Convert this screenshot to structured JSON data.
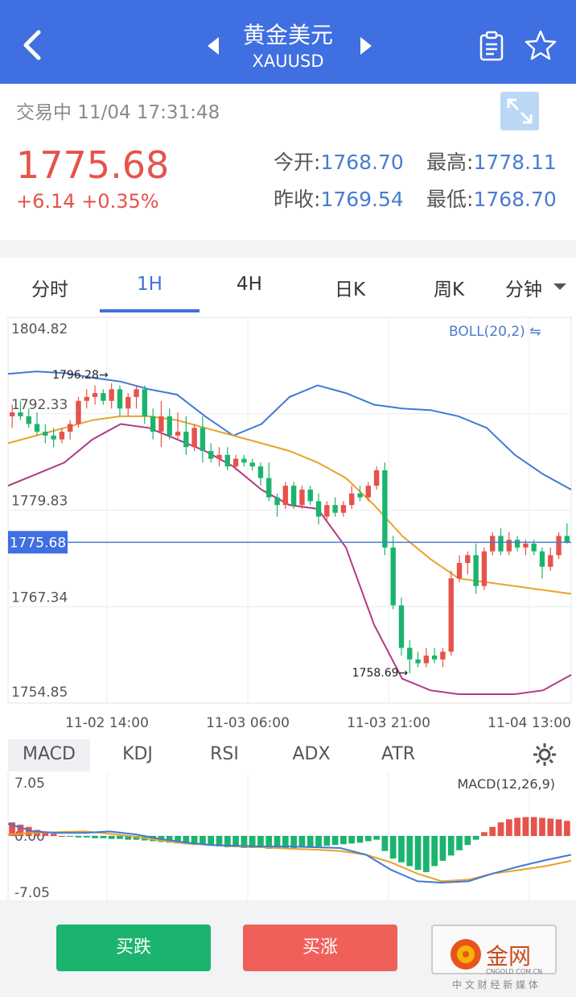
{
  "header": {
    "title": "黄金美元",
    "symbol": "XAUUSD"
  },
  "quote": {
    "status": "交易中 11/04 17:31:48",
    "price": "1775.68",
    "change": "+6.14",
    "change_pct": "+0.35%",
    "open_label": "今开:",
    "open_value": "1768.70",
    "high_label": "最高:",
    "high_value": "1778.11",
    "prev_close_label": "昨收:",
    "prev_close_value": "1769.54",
    "low_label": "最低:",
    "low_value": "1768.70"
  },
  "tabs": [
    {
      "label": "分时"
    },
    {
      "label": "1H"
    },
    {
      "label": "4H"
    },
    {
      "label": "日K"
    },
    {
      "label": "周K"
    },
    {
      "label": "分钟"
    }
  ],
  "active_tab": "1H",
  "indicator_tabs": [
    "MACD",
    "KDJ",
    "RSI",
    "ADX",
    "ATR"
  ],
  "colors": {
    "up": "#e5534b",
    "down": "#1bb46e",
    "accent": "#3f6fe0",
    "boll_upper": "#3f7ad6",
    "boll_mid": "#e8a32b",
    "boll_lower": "#b03a86"
  },
  "buttons": {
    "sell": "买跌",
    "buy": "买涨"
  },
  "watermark": {
    "brand": "金网",
    "domain": "CNGOLD.COM.CN",
    "slogan": "中 文 财 经 新 媒 体"
  },
  "chart_data": [
    {
      "type": "candlestick",
      "indicator": "BOLL(20,2)",
      "y_ticks": [
        "1804.82",
        "1792.33",
        "1779.83",
        "1767.34",
        "1754.85"
      ],
      "ylim": [
        1754.85,
        1804.82
      ],
      "x_ticks": [
        "11-02 14:00",
        "11-03 06:00",
        "11-03 21:00",
        "11-04 13:00"
      ],
      "current_price": "1775.68",
      "annotations": {
        "high": "1796.28",
        "low": "1758.69"
      },
      "ohlc": [
        [
          1792.0,
          1793.5,
          1790.5,
          1792.5
        ],
        [
          1792.5,
          1794.0,
          1791.5,
          1792.0
        ],
        [
          1792.0,
          1793.0,
          1790.5,
          1791.0
        ],
        [
          1791.0,
          1792.5,
          1789.5,
          1790.0
        ],
        [
          1790.0,
          1791.0,
          1788.5,
          1789.5
        ],
        [
          1789.5,
          1790.5,
          1788.0,
          1789.0
        ],
        [
          1789.0,
          1790.5,
          1788.5,
          1790.0
        ],
        [
          1790.0,
          1791.5,
          1789.0,
          1791.0
        ],
        [
          1791.0,
          1794.5,
          1790.5,
          1794.0
        ],
        [
          1794.0,
          1795.5,
          1793.0,
          1794.5
        ],
        [
          1794.5,
          1796.0,
          1793.5,
          1795.0
        ],
        [
          1795.0,
          1795.5,
          1793.5,
          1794.0
        ],
        [
          1794.0,
          1796.28,
          1793.0,
          1795.5
        ],
        [
          1795.5,
          1796.0,
          1792.0,
          1793.0
        ],
        [
          1793.0,
          1795.0,
          1792.0,
          1794.5
        ],
        [
          1794.5,
          1796.0,
          1793.0,
          1795.5
        ],
        [
          1795.5,
          1796.0,
          1791.0,
          1792.0
        ],
        [
          1792.0,
          1793.0,
          1789.0,
          1790.0
        ],
        [
          1790.0,
          1794.0,
          1788.0,
          1792.0
        ],
        [
          1792.0,
          1793.0,
          1789.0,
          1789.5
        ],
        [
          1789.5,
          1792.5,
          1789.0,
          1790.0
        ],
        [
          1790.0,
          1792.0,
          1787.0,
          1788.0
        ],
        [
          1788.0,
          1791.0,
          1787.5,
          1790.5
        ],
        [
          1790.5,
          1792.0,
          1786.0,
          1787.5
        ],
        [
          1787.5,
          1788.5,
          1786.0,
          1786.5
        ],
        [
          1786.5,
          1788.0,
          1785.5,
          1787.0
        ],
        [
          1787.0,
          1788.0,
          1785.0,
          1785.5
        ],
        [
          1785.5,
          1787.0,
          1785.0,
          1786.5
        ],
        [
          1786.5,
          1787.0,
          1785.5,
          1786.0
        ],
        [
          1786.0,
          1786.5,
          1785.0,
          1785.5
        ],
        [
          1785.5,
          1786.0,
          1783.0,
          1784.0
        ],
        [
          1784.0,
          1786.0,
          1781.0,
          1781.5
        ],
        [
          1781.5,
          1782.0,
          1779.0,
          1780.5
        ],
        [
          1780.5,
          1783.5,
          1780.0,
          1783.0
        ],
        [
          1783.0,
          1783.5,
          1780.0,
          1780.5
        ],
        [
          1780.5,
          1783.0,
          1780.0,
          1782.5
        ],
        [
          1782.5,
          1783.0,
          1780.5,
          1781.0
        ],
        [
          1781.0,
          1782.0,
          1778.0,
          1779.0
        ],
        [
          1779.0,
          1781.0,
          1778.5,
          1780.5
        ],
        [
          1780.5,
          1781.5,
          1779.0,
          1779.5
        ],
        [
          1779.5,
          1781.0,
          1779.0,
          1780.5
        ],
        [
          1780.5,
          1783.0,
          1780.0,
          1782.0
        ],
        [
          1782.0,
          1783.0,
          1781.0,
          1781.5
        ],
        [
          1781.5,
          1783.5,
          1781.0,
          1783.0
        ],
        [
          1783.0,
          1785.5,
          1782.5,
          1785.0
        ],
        [
          1785.0,
          1786.0,
          1774.0,
          1775.0
        ],
        [
          1775.0,
          1776.5,
          1767.0,
          1767.5
        ],
        [
          1767.5,
          1768.5,
          1761.0,
          1762.0
        ],
        [
          1762.0,
          1763.0,
          1758.69,
          1760.5
        ],
        [
          1760.5,
          1761.5,
          1759.5,
          1760.0
        ],
        [
          1760.0,
          1762.0,
          1759.5,
          1761.0
        ],
        [
          1761.0,
          1762.0,
          1760.0,
          1760.5
        ],
        [
          1760.5,
          1762.0,
          1759.5,
          1761.5
        ],
        [
          1761.5,
          1772.0,
          1761.0,
          1771.0
        ],
        [
          1771.0,
          1774.0,
          1770.5,
          1773.0
        ],
        [
          1773.0,
          1774.5,
          1771.5,
          1774.0
        ],
        [
          1774.0,
          1775.5,
          1769.0,
          1770.0
        ],
        [
          1770.0,
          1775.0,
          1769.5,
          1774.5
        ],
        [
          1774.5,
          1777.0,
          1774.0,
          1776.5
        ],
        [
          1776.5,
          1777.5,
          1774.0,
          1774.5
        ],
        [
          1774.5,
          1777.0,
          1774.0,
          1776.0
        ],
        [
          1776.0,
          1776.5,
          1774.5,
          1775.0
        ],
        [
          1775.0,
          1776.0,
          1774.0,
          1775.5
        ],
        [
          1775.5,
          1776.0,
          1774.0,
          1774.5
        ],
        [
          1774.5,
          1775.0,
          1771.0,
          1772.5
        ],
        [
          1772.5,
          1775.0,
          1772.0,
          1774.0
        ],
        [
          1774.0,
          1777.0,
          1773.5,
          1776.5
        ],
        [
          1776.5,
          1778.11,
          1775.5,
          1775.68
        ]
      ],
      "boll_upper": [
        1797.5,
        1797.8,
        1797.6,
        1797.0,
        1796.5,
        1795.5,
        1794.8,
        1792.0,
        1789.5,
        1791.0,
        1794.5,
        1796.0,
        1795.0,
        1793.5,
        1793.0,
        1792.8,
        1792.0,
        1790.5,
        1787.0,
        1784.5,
        1782.5
      ],
      "boll_mid": [
        1788.5,
        1789.5,
        1790.5,
        1791.5,
        1792.0,
        1792.0,
        1791.5,
        1790.5,
        1789.5,
        1788.5,
        1787.5,
        1786.0,
        1784.0,
        1780.5,
        1776.5,
        1773.5,
        1771.0,
        1770.5,
        1770.0,
        1769.5,
        1769.0
      ],
      "boll_lower": [
        1783.0,
        1784.5,
        1786.0,
        1789.0,
        1791.0,
        1790.5,
        1789.0,
        1787.5,
        1785.5,
        1782.5,
        1780.5,
        1780.0,
        1775.0,
        1765.0,
        1758.0,
        1756.5,
        1756.0,
        1756.0,
        1756.0,
        1756.5,
        1758.5
      ],
      "boll_x_frac": [
        0.0,
        0.05,
        0.1,
        0.15,
        0.2,
        0.25,
        0.3,
        0.35,
        0.4,
        0.45,
        0.5,
        0.55,
        0.6,
        0.65,
        0.7,
        0.75,
        0.8,
        0.85,
        0.9,
        0.95,
        1.0
      ]
    },
    {
      "type": "macd",
      "indicator": "MACD(12,26,9)",
      "y_ticks": [
        "7.05",
        "0.00",
        "-7.05"
      ],
      "ylim": [
        -7.05,
        7.05
      ],
      "histogram": [
        1.8,
        1.5,
        1.2,
        0.8,
        0.5,
        0.3,
        0.0,
        -0.1,
        -0.2,
        -0.2,
        -0.3,
        -0.3,
        -0.4,
        -0.4,
        -0.5,
        -0.5,
        -0.6,
        -0.7,
        -0.8,
        -0.9,
        -1.0,
        -1.1,
        -1.2,
        -1.2,
        -1.3,
        -1.4,
        -1.5,
        -1.5,
        -1.6,
        -1.6,
        -1.6,
        -1.7,
        -1.7,
        -1.6,
        -1.6,
        -1.5,
        -1.5,
        -1.4,
        -1.3,
        -1.2,
        -1.1,
        -1.0,
        -0.9,
        -0.7,
        -0.5,
        -2.0,
        -3.0,
        -3.5,
        -4.0,
        -4.5,
        -4.8,
        -4.0,
        -3.3,
        -2.6,
        -1.9,
        -1.2,
        -0.5,
        0.5,
        1.2,
        1.8,
        2.2,
        2.4,
        2.5,
        2.5,
        2.4,
        2.3,
        2.2,
        2.0
      ],
      "macd_line": [
        1.6,
        0.6,
        0.4,
        0.4,
        0.6,
        0.2,
        -0.4,
        -0.9,
        -1.2,
        -1.3,
        -1.4,
        -1.4,
        -1.5,
        -1.6,
        -2.5,
        -4.5,
        -6.0,
        -6.2,
        -6.0,
        -5.0,
        -4.0,
        -3.2,
        -2.5
      ],
      "signal_line": [
        0.2,
        0.4,
        0.5,
        0.6,
        0.3,
        -0.1,
        -0.6,
        -1.0,
        -1.2,
        -1.4,
        -1.5,
        -1.7,
        -1.8,
        -2.0,
        -2.5,
        -3.5,
        -5.0,
        -6.0,
        -5.8,
        -5.0,
        -4.5,
        -4.0,
        -3.3
      ],
      "line_x_frac": [
        0.0,
        0.045,
        0.09,
        0.136,
        0.18,
        0.227,
        0.27,
        0.318,
        0.36,
        0.41,
        0.45,
        0.5,
        0.545,
        0.59,
        0.636,
        0.68,
        0.727,
        0.77,
        0.818,
        0.86,
        0.91,
        0.955,
        1.0
      ]
    }
  ]
}
